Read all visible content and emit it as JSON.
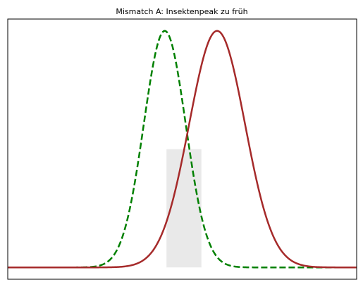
{
  "chart_data": {
    "type": "line",
    "title": "Mismatch A: Insektenpeak zu früh",
    "xlabel": "",
    "ylabel": "",
    "xlim": [
      0,
      100
    ],
    "ylim": [
      -0.05,
      1.05
    ],
    "grid": false,
    "legend": null,
    "axis_ticks": false,
    "series": [
      {
        "style": "dashed",
        "color": "#008000",
        "peak_x": 45,
        "sigma": 6,
        "points": [
          [
            0,
            0
          ],
          [
            15,
            0
          ],
          [
            25,
            0.02
          ],
          [
            30,
            0.04
          ],
          [
            33,
            0.14
          ],
          [
            36,
            0.32
          ],
          [
            39,
            0.61
          ],
          [
            42,
            0.89
          ],
          [
            45,
            1.0
          ],
          [
            48,
            0.88
          ],
          [
            51,
            0.61
          ],
          [
            54,
            0.32
          ],
          [
            57,
            0.14
          ],
          [
            60,
            0.04
          ],
          [
            65,
            0.0
          ],
          [
            80,
            0
          ],
          [
            100,
            0
          ]
        ]
      },
      {
        "style": "solid",
        "color": "#a52a2a",
        "peak_x": 60,
        "sigma": 8,
        "points": [
          [
            0,
            0
          ],
          [
            35,
            0.0
          ],
          [
            40,
            0.04
          ],
          [
            44,
            0.13
          ],
          [
            48,
            0.32
          ],
          [
            52,
            0.61
          ],
          [
            56,
            0.88
          ],
          [
            60,
            1.0
          ],
          [
            64,
            0.88
          ],
          [
            68,
            0.61
          ],
          [
            72,
            0.32
          ],
          [
            76,
            0.13
          ],
          [
            80,
            0.04
          ],
          [
            85,
            0.01
          ],
          [
            100,
            0
          ]
        ]
      }
    ],
    "shaded_region": {
      "x_range": [
        45.5,
        55.5
      ],
      "color": "#d3d3d3",
      "opacity": 0.5
    }
  }
}
